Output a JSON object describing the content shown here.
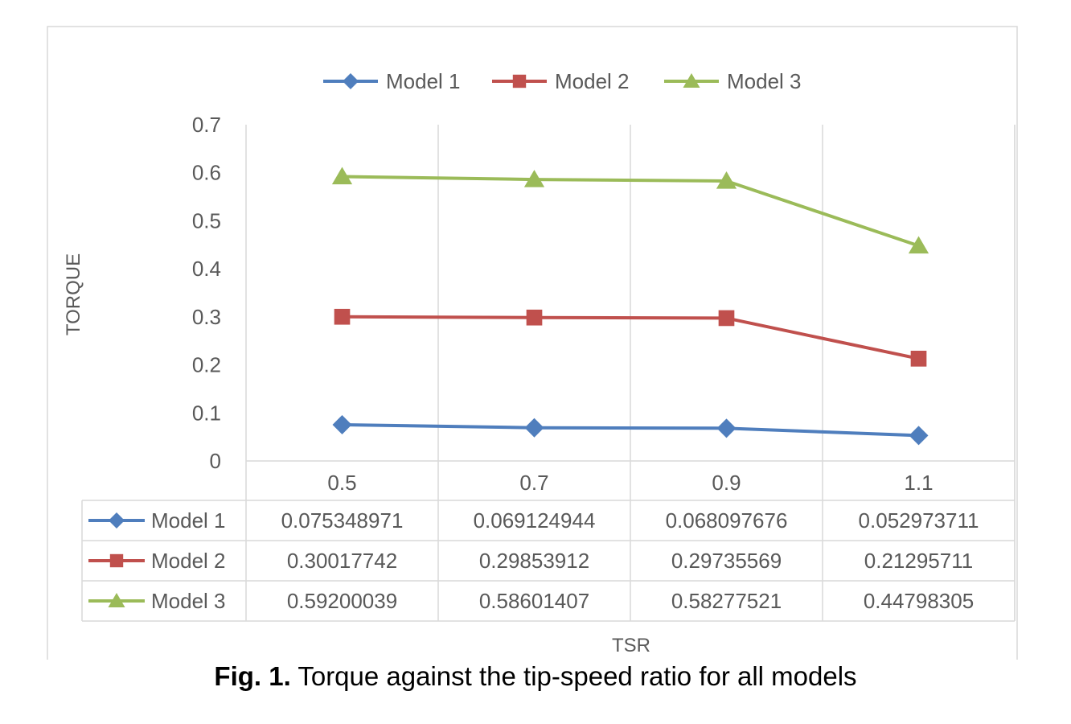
{
  "chart_data": {
    "type": "line",
    "x": [
      0.5,
      0.7,
      0.9,
      1.1
    ],
    "categories": [
      "0.5",
      "0.7",
      "0.9",
      "1.1"
    ],
    "series": [
      {
        "name": "Model 1",
        "color": "#4F7EBD",
        "marker": "diamond",
        "values": [
          0.075348971,
          0.069124944,
          0.068097676,
          0.052973711
        ],
        "labels": [
          "0.075348971",
          "0.069124944",
          "0.068097676",
          "0.052973711"
        ]
      },
      {
        "name": "Model 2",
        "color": "#C0504D",
        "marker": "square",
        "values": [
          0.30017742,
          0.29853912,
          0.29735569,
          0.21295711
        ],
        "labels": [
          "0.30017742",
          "0.29853912",
          "0.29735569",
          "0.21295711"
        ]
      },
      {
        "name": "Model 3",
        "color": "#9BBB59",
        "marker": "triangle",
        "values": [
          0.59200039,
          0.58601407,
          0.58277521,
          0.44798305
        ],
        "labels": [
          "0.59200039",
          "0.58601407",
          "0.58277521",
          "0.44798305"
        ]
      }
    ],
    "xlabel": "TSR",
    "ylabel": "TORQUE",
    "ylim": [
      0,
      0.7
    ],
    "yticks": [
      "0",
      "0.1",
      "0.2",
      "0.3",
      "0.4",
      "0.5",
      "0.6",
      "0.7"
    ],
    "grid": "vertical",
    "legend": "top",
    "data_table": true
  },
  "caption": {
    "prefix": "Fig. 1.",
    "text": " Torque against the tip-speed ratio for all models"
  }
}
